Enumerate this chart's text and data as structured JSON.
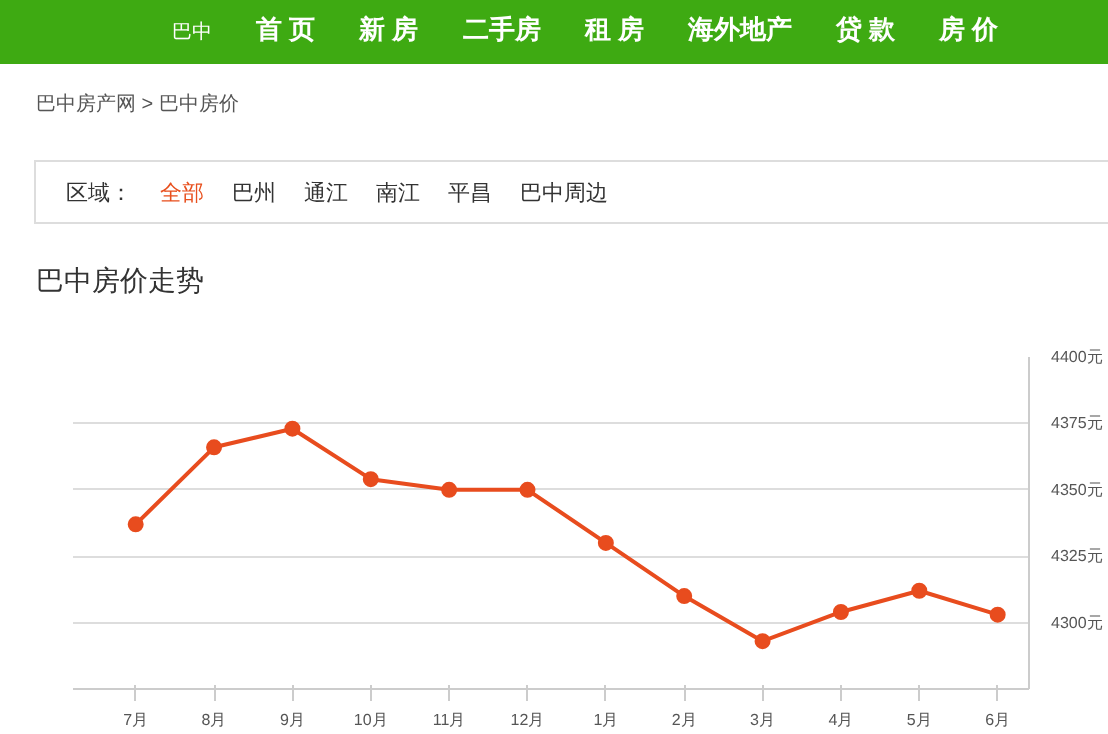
{
  "chart_data": {
    "type": "line",
    "title": "巴中房价走势",
    "categories": [
      "7月",
      "8月",
      "9月",
      "10月",
      "11月",
      "12月",
      "1月",
      "2月",
      "3月",
      "4月",
      "5月",
      "6月"
    ],
    "series": [
      {
        "color": "#e84c1e",
        "values": [
          4337,
          4366,
          4373,
          4354,
          4350,
          4350,
          4330,
          4310,
          4293,
          4304,
          4312,
          4303
        ]
      }
    ],
    "ylim": [
      4275,
      4400
    ],
    "yticks": [
      {
        "value": 4300,
        "label": "4300元"
      },
      {
        "value": 4325,
        "label": "4325元"
      },
      {
        "value": 4350,
        "label": "4350元"
      },
      {
        "value": 4375,
        "label": "4375元"
      },
      {
        "value": 4400,
        "label": "4400元"
      }
    ],
    "grid": "y",
    "marker": "circle",
    "line_style": "solid",
    "annotations": [
      "巴中",
      "首 页",
      "新 房",
      "二手房",
      "租 房",
      "海外地产",
      "贷 款",
      "房 价",
      "巴中房产网 > 巴中房价",
      "区域：",
      "全部",
      "巴州",
      "通江",
      "南江",
      "平昌",
      "巴中周边"
    ]
  }
}
